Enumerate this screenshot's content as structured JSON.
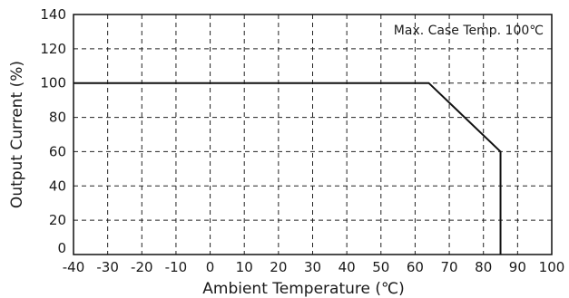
{
  "chart_data": {
    "type": "line",
    "title": "",
    "xlabel": "Ambient Temperature (℃)",
    "ylabel": "Output Current (%)",
    "xlim": [
      -40,
      100
    ],
    "ylim": [
      0,
      140
    ],
    "xticks": [
      -40,
      -30,
      -20,
      -10,
      0,
      10,
      20,
      30,
      40,
      50,
      60,
      70,
      80,
      90,
      100
    ],
    "yticks": [
      0,
      20,
      40,
      60,
      80,
      100,
      120,
      140
    ],
    "grid": true,
    "annotation": "Max. Case Temp. 100℃",
    "series": [
      {
        "x": [
          -40,
          64,
          85,
          85
        ],
        "y": [
          100,
          100,
          60,
          0
        ]
      }
    ]
  }
}
